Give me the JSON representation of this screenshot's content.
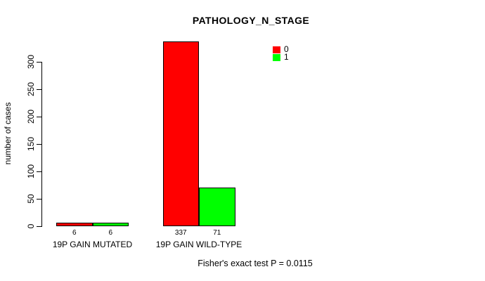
{
  "chart_data": {
    "type": "bar",
    "title": "PATHOLOGY_N_STAGE",
    "ylabel": "number of cases",
    "xlabel": "",
    "categories": [
      "19P GAIN MUTATED",
      "19P GAIN WILD-TYPE"
    ],
    "series": [
      {
        "name": "0",
        "color": "#ff0000",
        "values": [
          6,
          337
        ]
      },
      {
        "name": "1",
        "color": "#00ff00",
        "values": [
          6,
          71
        ]
      }
    ],
    "bar_value_labels": [
      [
        "6",
        "337"
      ],
      [
        "6",
        "71"
      ]
    ],
    "yticks": [
      0,
      50,
      100,
      150,
      200,
      250,
      300
    ],
    "ylim": [
      0,
      337
    ],
    "grid": false,
    "legend_position": "top-right",
    "annotation": "Fisher's exact test P = 0.0115"
  }
}
